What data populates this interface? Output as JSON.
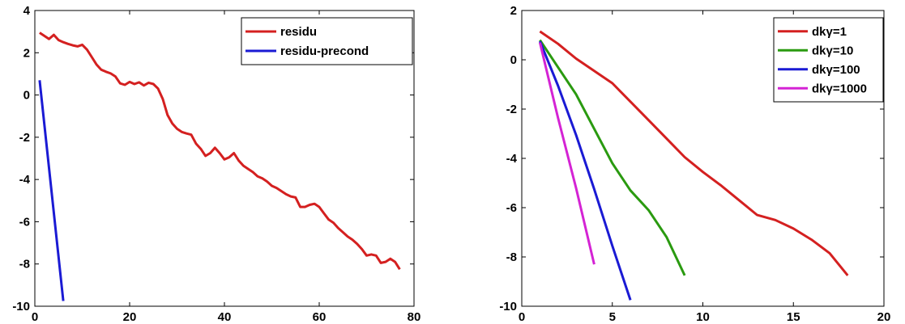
{
  "chart_data": [
    {
      "type": "line",
      "xlim": [
        0,
        80
      ],
      "ylim": [
        -10,
        4
      ],
      "xticks": [
        "0",
        "20",
        "40",
        "60",
        "80"
      ],
      "yticks": [
        "-10",
        "-8",
        "-6",
        "-4",
        "-2",
        "0",
        "2",
        "4"
      ],
      "grid": false,
      "legend_position": "top-right",
      "series": [
        {
          "name": "residu",
          "color": "#d42020",
          "x": [
            1,
            2,
            3,
            4,
            5,
            6,
            7,
            8,
            9,
            10,
            11,
            12,
            13,
            14,
            15,
            16,
            17,
            18,
            19,
            20,
            21,
            22,
            23,
            24,
            25,
            26,
            27,
            28,
            29,
            30,
            31,
            32,
            33,
            34,
            35,
            36,
            37,
            38,
            39,
            40,
            41,
            42,
            43,
            44,
            45,
            46,
            47,
            48,
            49,
            50,
            51,
            52,
            53,
            54,
            55,
            56,
            57,
            58,
            59,
            60,
            61,
            62,
            63,
            64,
            65,
            66,
            67,
            68,
            69,
            70,
            71,
            72,
            73,
            74,
            75,
            76,
            77
          ],
          "values": [
            2.95,
            2.8,
            2.65,
            2.85,
            2.6,
            2.5,
            2.42,
            2.35,
            2.3,
            2.38,
            2.15,
            1.8,
            1.45,
            1.2,
            1.1,
            1.02,
            0.88,
            0.55,
            0.48,
            0.62,
            0.52,
            0.6,
            0.45,
            0.58,
            0.52,
            0.3,
            -0.2,
            -0.95,
            -1.35,
            -1.6,
            -1.75,
            -1.82,
            -1.88,
            -2.3,
            -2.55,
            -2.88,
            -2.75,
            -2.5,
            -2.75,
            -3.05,
            -2.95,
            -2.75,
            -3.1,
            -3.35,
            -3.5,
            -3.65,
            -3.85,
            -3.95,
            -4.1,
            -4.3,
            -4.4,
            -4.55,
            -4.7,
            -4.8,
            -4.85,
            -5.3,
            -5.3,
            -5.2,
            -5.15,
            -5.3,
            -5.6,
            -5.9,
            -6.05,
            -6.3,
            -6.5,
            -6.7,
            -6.85,
            -7.05,
            -7.3,
            -7.6,
            -7.55,
            -7.6,
            -7.95,
            -7.9,
            -7.75,
            -7.9,
            -8.25
          ]
        },
        {
          "name": "residu-precond",
          "color": "#1a1ad4",
          "x": [
            1,
            6
          ],
          "values": [
            0.7,
            -9.75
          ]
        }
      ]
    },
    {
      "type": "line",
      "xlim": [
        0,
        20
      ],
      "ylim": [
        -10,
        2
      ],
      "xticks": [
        "0",
        "5",
        "10",
        "15",
        "20"
      ],
      "yticks": [
        "-10",
        "-8",
        "-6",
        "-4",
        "-2",
        "0",
        "2"
      ],
      "grid": false,
      "legend_position": "top-right",
      "series": [
        {
          "name": "dkγ=1",
          "color": "#d42020",
          "x": [
            1,
            2,
            3,
            4,
            5,
            6,
            7,
            8,
            9,
            10,
            11,
            12,
            13,
            14,
            15,
            16,
            17,
            18
          ],
          "values": [
            1.15,
            0.65,
            0.05,
            -0.45,
            -0.95,
            -1.7,
            -2.45,
            -3.2,
            -3.95,
            -4.55,
            -5.1,
            -5.7,
            -6.3,
            -6.5,
            -6.85,
            -7.3,
            -7.85,
            -8.75
          ]
        },
        {
          "name": "dkγ=10",
          "color": "#2a9a10",
          "x": [
            1,
            2,
            3,
            4,
            5,
            6,
            7,
            8,
            9
          ],
          "values": [
            0.8,
            -0.3,
            -1.4,
            -2.8,
            -4.2,
            -5.3,
            -6.1,
            -7.2,
            -8.75
          ]
        },
        {
          "name": "dkγ=100",
          "color": "#1a1ad4",
          "x": [
            1,
            2,
            3,
            4,
            5,
            6
          ],
          "values": [
            0.75,
            -1.05,
            -3.05,
            -5.25,
            -7.55,
            -9.75
          ]
        },
        {
          "name": "dkγ=1000",
          "color": "#d423d4",
          "x": [
            1,
            2,
            3,
            4
          ],
          "values": [
            0.7,
            -2.35,
            -5.2,
            -8.3
          ]
        }
      ]
    }
  ]
}
